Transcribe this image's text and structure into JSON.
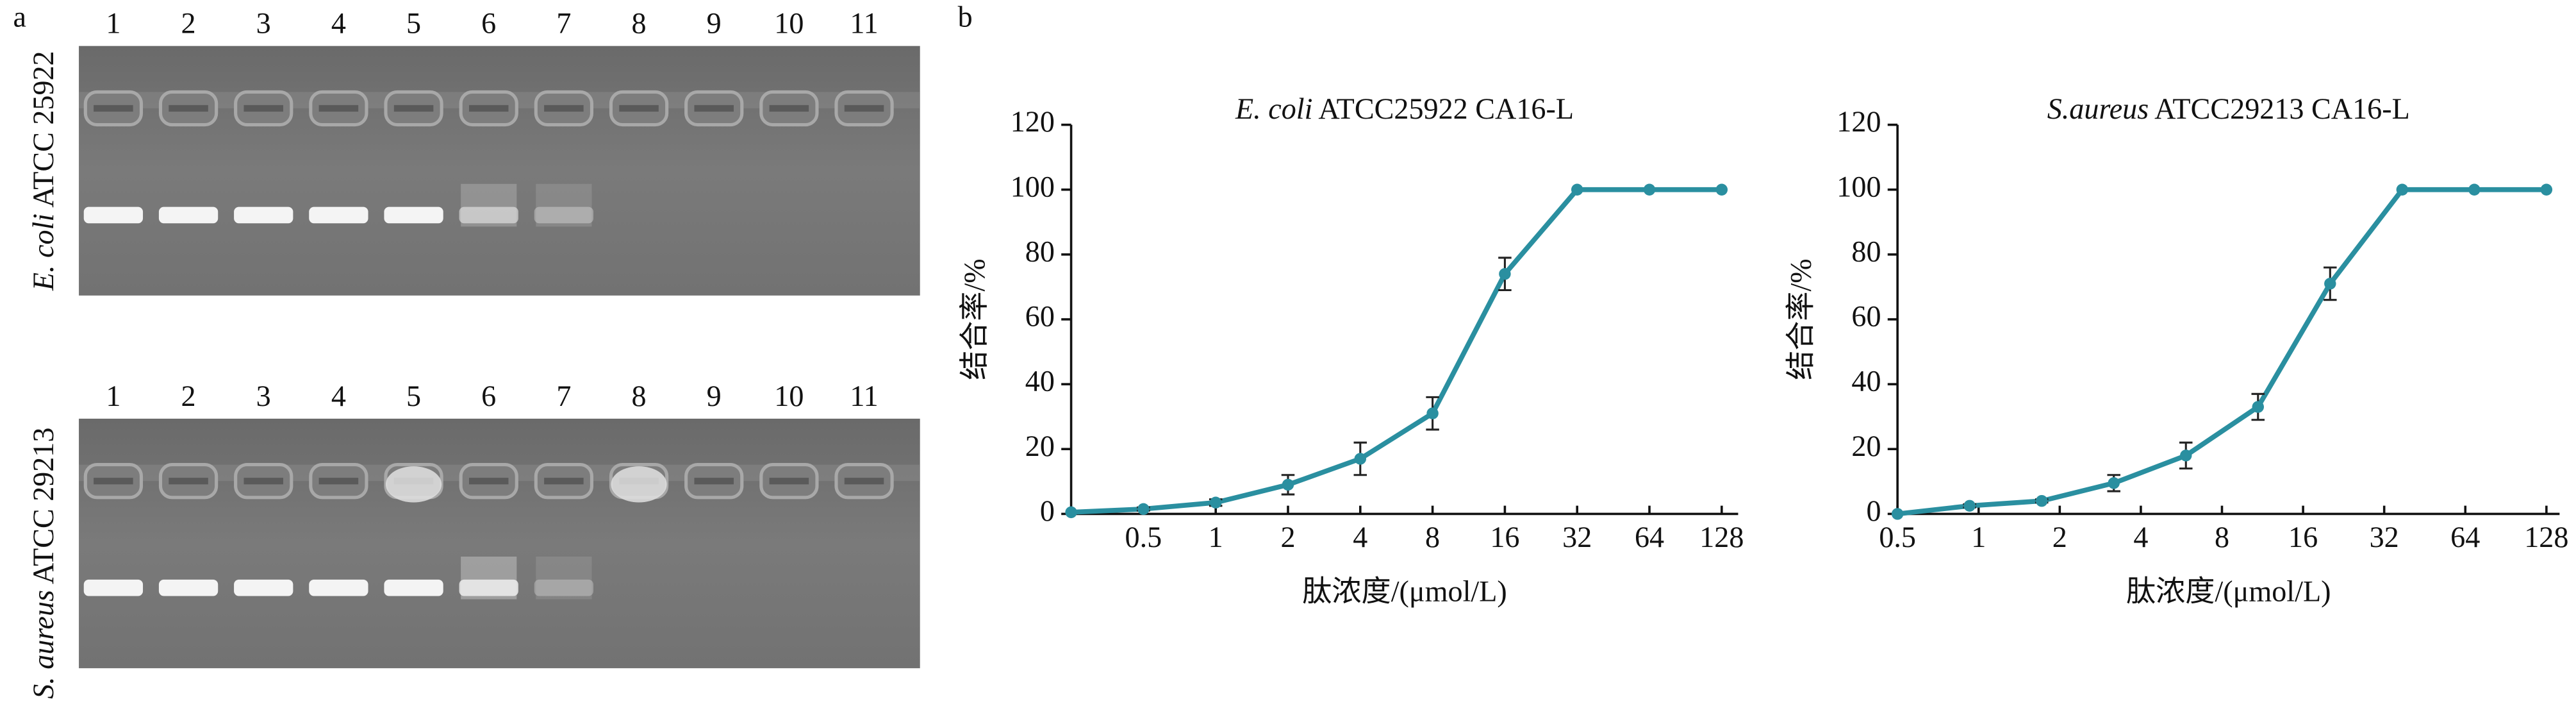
{
  "panel_a": {
    "label": "a",
    "gels": [
      {
        "label": [
          {
            "text": "E. coli",
            "italic": true
          },
          {
            "text": " ATCC 25922"
          }
        ],
        "lanes": [
          "1",
          "2",
          "3",
          "4",
          "5",
          "6",
          "7",
          "8",
          "9",
          "10",
          "11"
        ]
      },
      {
        "label": [
          {
            "text": "S. aureus",
            "italic": true
          },
          {
            "text": " ATCC 29213"
          }
        ],
        "lanes": [
          "1",
          "2",
          "3",
          "4",
          "5",
          "6",
          "7",
          "8",
          "9",
          "10",
          "11"
        ]
      }
    ]
  },
  "panel_b_label": "b",
  "chart_data": [
    {
      "type": "line",
      "title": [
        {
          "text": "E. coli",
          "italic": true
        },
        {
          "text": " ATCC25922 CA16-L"
        }
      ],
      "x_label": "肽浓度/(μmol/L)",
      "y_label": "结合率/%",
      "categories": [
        null,
        "0.5",
        "1",
        "2",
        "4",
        "8",
        "16",
        "32",
        "64",
        "128"
      ],
      "series": [
        {
          "color": "#2a8fa0",
          "values": [
            0.5,
            1.5,
            3.5,
            9,
            17,
            31,
            74,
            100,
            100,
            100
          ],
          "errors": [
            0,
            0.5,
            1,
            3,
            5,
            5,
            5,
            0,
            0,
            0
          ]
        }
      ],
      "ylim": [
        0,
        120
      ],
      "yticks": [
        0,
        20,
        40,
        60,
        80,
        100,
        120
      ]
    },
    {
      "type": "line",
      "title": [
        {
          "text": "S.aureus",
          "italic": true
        },
        {
          "text": " ATCC29213 CA16-L"
        }
      ],
      "x_label": "肽浓度/(μmol/L)",
      "y_label": "结合率/%",
      "xtick_labels": [
        "0.5",
        "1",
        "2",
        "4",
        "8",
        "16",
        "32",
        "64",
        "128"
      ],
      "series": [
        {
          "color": "#2a8fa0",
          "values": [
            0,
            2.5,
            4,
            9.5,
            18,
            33,
            71,
            100,
            100,
            100
          ],
          "errors": [
            0,
            0.5,
            0.5,
            2.5,
            4,
            4,
            5,
            0,
            0,
            0
          ]
        }
      ],
      "ylim": [
        0,
        120
      ],
      "yticks": [
        0,
        20,
        40,
        60,
        80,
        100,
        120
      ]
    }
  ]
}
